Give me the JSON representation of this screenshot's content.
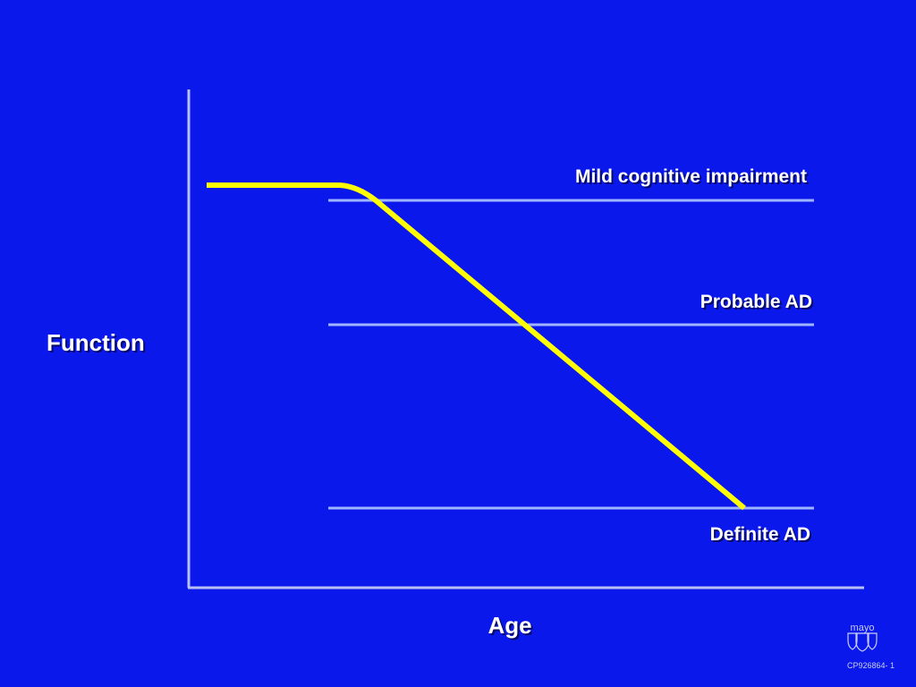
{
  "axes": {
    "y_label": "Function",
    "x_label": "Age"
  },
  "thresholds": [
    {
      "label": "Mild cognitive impairment"
    },
    {
      "label": "Probable AD"
    },
    {
      "label": "Definite AD"
    }
  ],
  "logo": {
    "text": "mayo"
  },
  "footer": {
    "code": "CP926864- 1"
  },
  "colors": {
    "background": "#0b18ec",
    "axis": "#b7bff5",
    "threshold_line": "#9fb4ff",
    "curve": "#ffff00",
    "text": "#ffffff"
  }
}
